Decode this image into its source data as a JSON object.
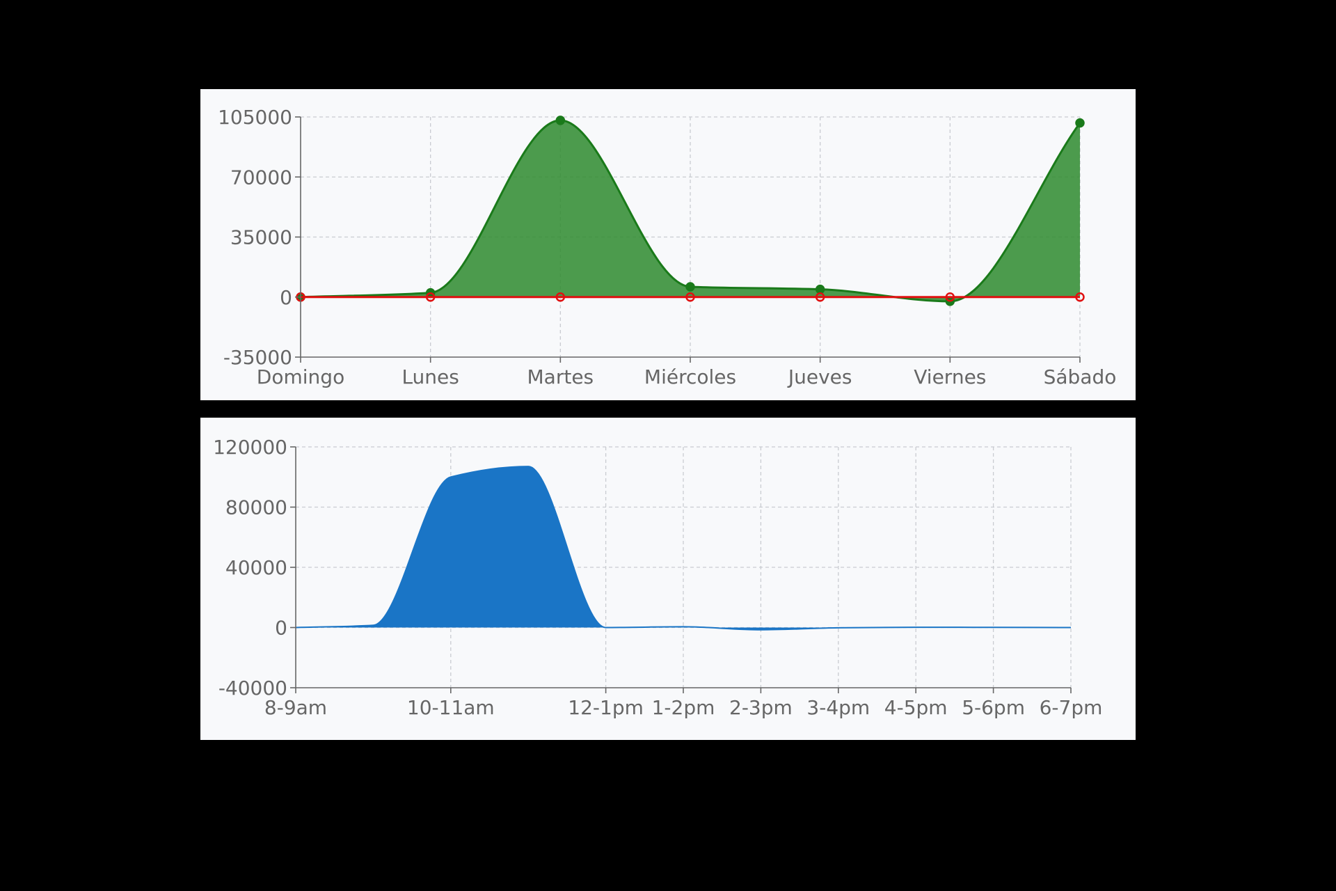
{
  "chart_data": [
    {
      "type": "area",
      "categories": [
        "Domingo",
        "Lunes",
        "Martes",
        "Miércoles",
        "Jueves",
        "Viernes",
        "Sábado"
      ],
      "ylim": [
        -35000,
        105000
      ],
      "yticks": [
        -35000,
        0,
        35000,
        70000,
        105000
      ],
      "grid": true,
      "series": [
        {
          "color": "#1a7a1a",
          "fill": "#2e8b2e",
          "values": [
            0,
            2500,
            103000,
            6000,
            4500,
            -2500,
            101500
          ]
        },
        {
          "color": "#e01010",
          "values": [
            0,
            0,
            0,
            0,
            0,
            0,
            0
          ]
        }
      ]
    },
    {
      "type": "area",
      "categories": [
        "8-9am",
        "10-11am",
        "12-1pm",
        "1-2pm",
        "2-3pm",
        "3-4pm",
        "4-5pm",
        "5-6pm",
        "6-7pm"
      ],
      "x": [
        0,
        1,
        2,
        3,
        4,
        5,
        6,
        7,
        8,
        9,
        10
      ],
      "x_tick_positions": [
        0,
        2,
        4,
        5,
        6,
        7,
        8,
        9,
        10
      ],
      "ylim": [
        -40000,
        120000
      ],
      "yticks": [
        -40000,
        0,
        40000,
        80000,
        120000
      ],
      "grid": true,
      "series": [
        {
          "color": "#1a75c6",
          "fill": "#1a75c6",
          "values": [
            0,
            1500,
            100000,
            107000,
            0,
            500,
            -1500,
            -200,
            200,
            100,
            0
          ]
        }
      ]
    }
  ]
}
